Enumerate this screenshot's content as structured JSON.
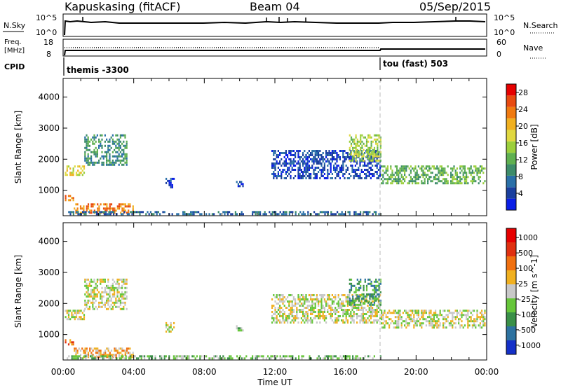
{
  "header": {
    "title": "Kapuskasing (fitACF)",
    "beam": "Beam 04",
    "date": "05/Sep/2015"
  },
  "nsky_panel": {
    "left_label": "N.Sky",
    "right_label": "N.Search",
    "ticks": [
      "10^5",
      "10^0"
    ]
  },
  "freq_panel": {
    "left_label_line1": "Freq.",
    "left_label_line2": "[MHz]",
    "left_ticks": [
      "18",
      "8"
    ],
    "right_label": "Nave",
    "right_ticks": [
      "60",
      "0"
    ]
  },
  "cpid_panel": {
    "label": "CPID",
    "programs": [
      "themis -3300",
      "tou (fast) 503"
    ],
    "switch_time": "18:00"
  },
  "x_axis": {
    "label": "Time UT",
    "ticks": [
      "00:00",
      "04:00",
      "08:00",
      "12:00",
      "16:00",
      "20:00",
      "00:00"
    ]
  },
  "chart_data": [
    {
      "type": "heatmap",
      "name": "power",
      "ylabel": "Slant Range [km]",
      "ylim": [
        180,
        4600
      ],
      "yticks": [
        1000,
        2000,
        3000,
        4000
      ],
      "xlim": [
        0,
        24
      ],
      "colorbar": {
        "label": "Power [dB]",
        "ticks": [
          "4",
          "8",
          "12",
          "16",
          "20",
          "24",
          "28"
        ],
        "colors": [
          "#0a1ee6",
          "#1a3f9e",
          "#2a70a8",
          "#3d8c6a",
          "#5fb050",
          "#9ccf3c",
          "#e0d840",
          "#f0b020",
          "#f07a10",
          "#e84a10",
          "#e60000"
        ]
      },
      "bands": [
        {
          "t": [
            0.1,
            1.2
          ],
          "r": [
            1500,
            1800
          ],
          "level": 6
        },
        {
          "t": [
            1.2,
            3.6
          ],
          "r": [
            1800,
            2800
          ],
          "level": 3
        },
        {
          "t": [
            0.1,
            0.6
          ],
          "r": [
            650,
            850
          ],
          "level": 8
        },
        {
          "t": [
            0.6,
            4.0
          ],
          "r": [
            280,
            580
          ],
          "level": 8
        },
        {
          "t": [
            0.2,
            18.0
          ],
          "r": [
            200,
            330
          ],
          "level": 2
        },
        {
          "t": [
            11.8,
            18.0
          ],
          "r": [
            1400,
            2300
          ],
          "level": 1
        },
        {
          "t": [
            18.0,
            23.9
          ],
          "r": [
            1200,
            1800
          ],
          "level": 4
        },
        {
          "t": [
            5.8,
            6.3
          ],
          "r": [
            1100,
            1400
          ],
          "level": 1
        },
        {
          "t": [
            9.8,
            10.2
          ],
          "r": [
            1100,
            1300
          ],
          "level": 1
        },
        {
          "t": [
            16.2,
            18.0
          ],
          "r": [
            1950,
            2800
          ],
          "level": 5
        }
      ]
    },
    {
      "type": "heatmap",
      "name": "velocity",
      "ylabel": "Slant Range [km]",
      "ylim": [
        180,
        4600
      ],
      "yticks": [
        1000,
        2000,
        3000,
        4000
      ],
      "xlim": [
        0,
        24
      ],
      "colorbar": {
        "label": "Velocity [m s^-1]",
        "ticks": [
          "1000",
          "500",
          "100",
          "25",
          "-25",
          "-100",
          "-500",
          "-1000"
        ],
        "colors": [
          "#1430c8",
          "#2d72a0",
          "#3a9048",
          "#66c63a",
          "#c8c8c8",
          "#f0b020",
          "#f07010",
          "#e03010",
          "#e60000"
        ]
      },
      "bands": [
        {
          "t": [
            0.1,
            1.2
          ],
          "r": [
            1500,
            1800
          ],
          "level": 4
        },
        {
          "t": [
            1.2,
            3.6
          ],
          "r": [
            1800,
            2800
          ],
          "level": 4
        },
        {
          "t": [
            0.1,
            0.6
          ],
          "r": [
            650,
            850
          ],
          "level": 6
        },
        {
          "t": [
            0.6,
            4.0
          ],
          "r": [
            280,
            580
          ],
          "level": 5
        },
        {
          "t": [
            0.2,
            18.0
          ],
          "r": [
            200,
            330
          ],
          "level": 3
        },
        {
          "t": [
            11.8,
            18.0
          ],
          "r": [
            1400,
            2300
          ],
          "level": 4
        },
        {
          "t": [
            18.0,
            23.9
          ],
          "r": [
            1200,
            1800
          ],
          "level": 4
        },
        {
          "t": [
            5.8,
            6.3
          ],
          "r": [
            1100,
            1400
          ],
          "level": 4
        },
        {
          "t": [
            9.8,
            10.2
          ],
          "r": [
            1100,
            1300
          ],
          "level": 3
        },
        {
          "t": [
            16.2,
            18.0
          ],
          "r": [
            1950,
            2800
          ],
          "level": 2
        }
      ]
    }
  ]
}
